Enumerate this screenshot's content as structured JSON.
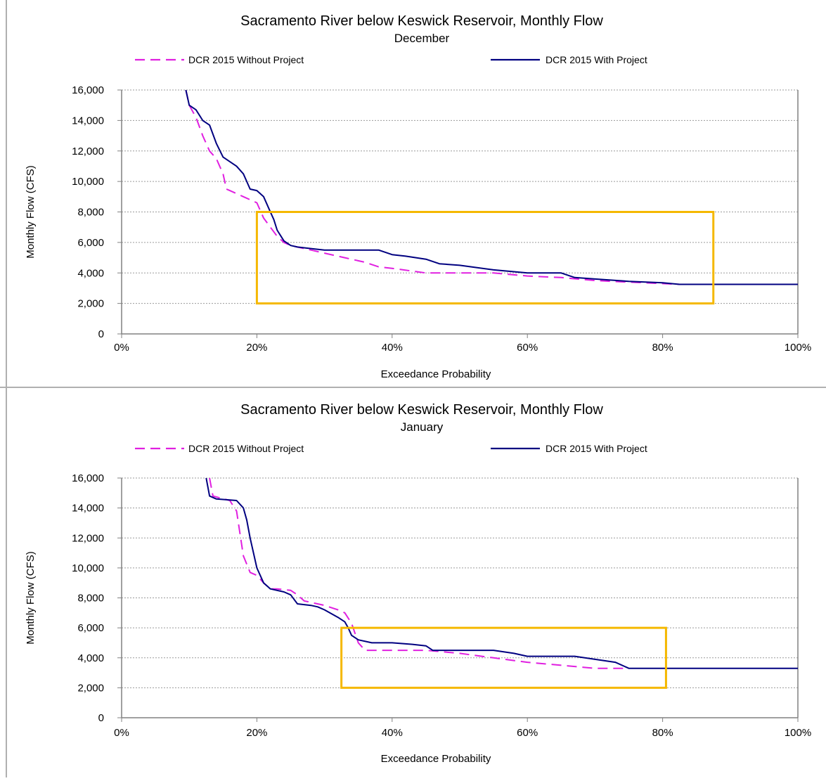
{
  "chart_data": [
    {
      "type": "line",
      "title": "Sacramento River below Keswick Reservoir, Monthly Flow",
      "subtitle": "December",
      "xlabel": "Exceedance Probability",
      "ylabel": "Monthly Flow (CFS)",
      "xlim": [
        0,
        100
      ],
      "ylim": [
        0,
        16000
      ],
      "xticks": [
        "0%",
        "20%",
        "40%",
        "60%",
        "80%",
        "100%"
      ],
      "yticks": [
        "0",
        "2,000",
        "4,000",
        "6,000",
        "8,000",
        "10,000",
        "12,000",
        "14,000",
        "16,000"
      ],
      "grid": true,
      "legend_position": "top",
      "highlight_box": {
        "x": [
          20,
          87.5
        ],
        "y": [
          2000,
          8000
        ],
        "color": "#f5b800"
      },
      "series": [
        {
          "name": "DCR 2015 Without Project",
          "color": "#e020e0",
          "style": "dashed",
          "x": [
            9.5,
            10,
            11,
            12,
            13,
            14,
            15,
            15.5,
            16,
            18,
            20,
            21,
            22,
            23,
            24,
            25,
            26,
            28,
            30,
            33,
            36,
            38,
            40,
            45,
            50,
            55,
            60,
            65,
            70,
            75,
            80,
            82.5
          ],
          "y": [
            16000,
            15000,
            14200,
            13000,
            12000,
            11500,
            10500,
            9500,
            9400,
            9000,
            8600,
            7600,
            7000,
            6400,
            6000,
            5800,
            5700,
            5500,
            5300,
            5000,
            4700,
            4400,
            4300,
            4000,
            4000,
            4000,
            3800,
            3700,
            3500,
            3400,
            3300,
            3250
          ]
        },
        {
          "name": "DCR 2015 With Project",
          "color": "#000080",
          "style": "solid",
          "x": [
            9.5,
            10,
            11,
            12,
            13,
            14,
            15,
            16,
            17,
            18,
            19,
            20,
            21,
            22,
            22.5,
            23,
            24,
            25,
            26,
            28,
            30,
            35,
            38,
            40,
            42,
            45,
            47,
            50,
            55,
            60,
            65,
            67,
            70,
            75,
            80,
            82.5,
            85,
            90,
            95,
            100
          ],
          "y": [
            16000,
            15000,
            14700,
            14000,
            13700,
            12500,
            11600,
            11300,
            11000,
            10500,
            9500,
            9400,
            9000,
            8000,
            7500,
            6800,
            6100,
            5800,
            5700,
            5600,
            5500,
            5500,
            5500,
            5200,
            5100,
            4900,
            4600,
            4500,
            4200,
            4000,
            4000,
            3700,
            3600,
            3450,
            3350,
            3250,
            3250,
            3250,
            3250,
            3250
          ]
        }
      ]
    },
    {
      "type": "line",
      "title": "Sacramento River below Keswick Reservoir, Monthly Flow",
      "subtitle": "January",
      "xlabel": "Exceedance Probability",
      "ylabel": "Monthly Flow (CFS)",
      "xlim": [
        0,
        100
      ],
      "ylim": [
        0,
        16000
      ],
      "xticks": [
        "0%",
        "20%",
        "40%",
        "60%",
        "80%",
        "100%"
      ],
      "yticks": [
        "0",
        "2,000",
        "4,000",
        "6,000",
        "8,000",
        "10,000",
        "12,000",
        "14,000",
        "16,000"
      ],
      "grid": true,
      "legend_position": "top",
      "highlight_box": {
        "x": [
          32.5,
          80.5
        ],
        "y": [
          2000,
          6000
        ],
        "color": "#f5b800"
      },
      "series": [
        {
          "name": "DCR 2015 Without Project",
          "color": "#e020e0",
          "style": "dashed",
          "x": [
            13,
            13.5,
            16,
            17,
            18,
            19,
            20,
            21,
            22,
            23,
            25,
            26,
            27,
            30,
            32,
            33,
            34,
            35,
            36,
            40,
            45,
            50,
            55,
            60,
            65,
            70,
            75
          ],
          "y": [
            16000,
            14800,
            14500,
            13800,
            10800,
            9700,
            9500,
            9000,
            8600,
            8600,
            8500,
            8200,
            7800,
            7500,
            7200,
            7000,
            6300,
            5000,
            4500,
            4500,
            4500,
            4300,
            4000,
            3700,
            3500,
            3300,
            3300
          ]
        },
        {
          "name": "DCR 2015 With Project",
          "color": "#000080",
          "style": "solid",
          "x": [
            12.5,
            13,
            14,
            17,
            18,
            18.5,
            19,
            20,
            21,
            22,
            24,
            25,
            26,
            28,
            29,
            30,
            32,
            33,
            33.5,
            34,
            35,
            37,
            40,
            43,
            45,
            46,
            50,
            55,
            58,
            60,
            63,
            67,
            70,
            73,
            75,
            80,
            85,
            90,
            95,
            100
          ],
          "y": [
            16000,
            14800,
            14600,
            14500,
            14000,
            13200,
            12000,
            10000,
            9000,
            8600,
            8400,
            8200,
            7600,
            7500,
            7400,
            7200,
            6700,
            6400,
            6000,
            5500,
            5200,
            5000,
            5000,
            4900,
            4800,
            4500,
            4500,
            4500,
            4300,
            4100,
            4100,
            4100,
            3900,
            3700,
            3300,
            3300,
            3300,
            3300,
            3300,
            3300
          ]
        }
      ]
    }
  ]
}
